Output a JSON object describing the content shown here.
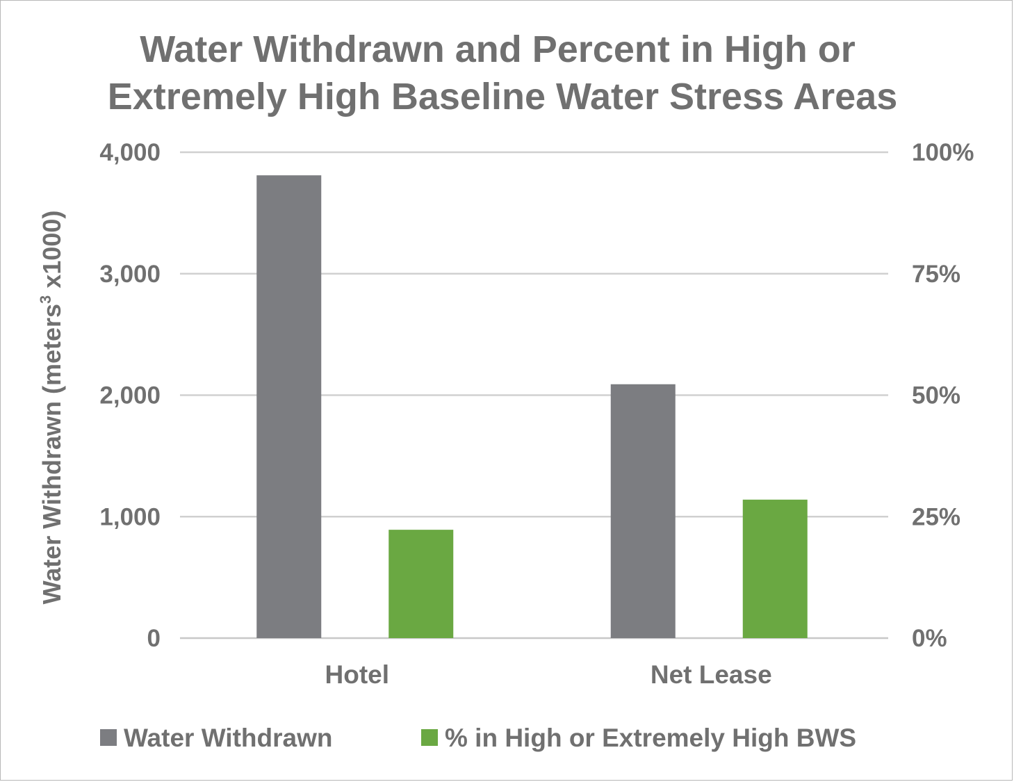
{
  "chart_data": {
    "type": "bar",
    "title_lines": [
      "Water Withdrawn and Percent in High or",
      "Extremely High Baseline Water Stress Areas"
    ],
    "categories": [
      "Hotel",
      "Net Lease"
    ],
    "series": [
      {
        "name": "Water Withdrawn",
        "axis": "left",
        "color": "#7c7d81",
        "values": [
          3810,
          2090
        ]
      },
      {
        "name": "% in High or Extremely High BWS",
        "axis": "right",
        "color": "#6aa842",
        "values": [
          22.3,
          28.5
        ]
      }
    ],
    "y_left": {
      "label_prefix": "Water Withdrawn (meters",
      "label_superscript": "3",
      "label_suffix": " x1000)",
      "ylim": [
        0,
        4000
      ],
      "ticks": [
        0,
        1000,
        2000,
        3000,
        4000
      ],
      "tick_labels": [
        "0",
        "1,000",
        "2,000",
        "3,000",
        "4,000"
      ]
    },
    "y_right": {
      "ylim": [
        0,
        100
      ],
      "ticks": [
        0,
        25,
        50,
        75,
        100
      ],
      "tick_labels": [
        "0%",
        "25%",
        "50%",
        "75%",
        "100%"
      ]
    },
    "grid": true,
    "legend_position": "bottom"
  }
}
